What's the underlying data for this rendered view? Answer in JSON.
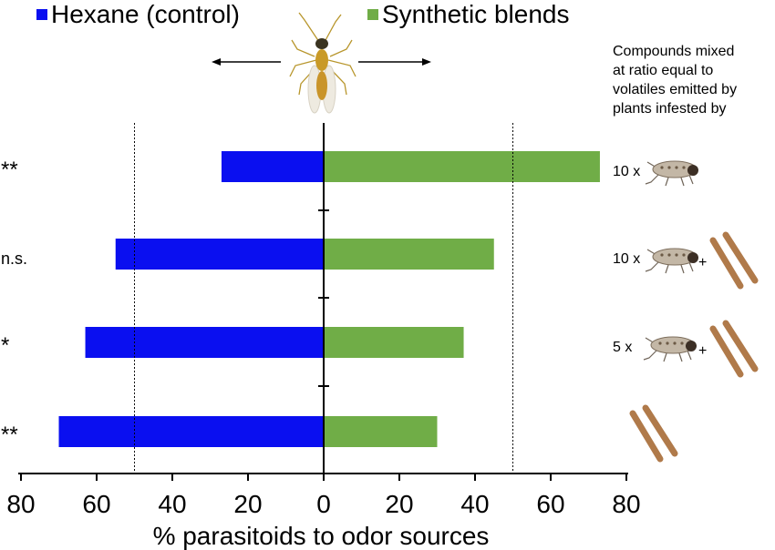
{
  "legend": {
    "control": "Hexane (control)",
    "blend": "Synthetic blends"
  },
  "side_note": {
    "line1": "Compounds mixed",
    "line2": "at  ratio equal to",
    "line3": "volatiles emitted by",
    "line4": "plants infested by"
  },
  "rows": [
    {
      "significance": "**",
      "treatment": "10 x",
      "has_plus": false,
      "icons": [
        "insect-icon"
      ]
    },
    {
      "significance": "n.s.",
      "treatment": "10 x",
      "has_plus": true,
      "icons": [
        "insect-icon",
        "larva-icon"
      ]
    },
    {
      "significance": "*",
      "treatment": "5 x",
      "has_plus": true,
      "icons": [
        "insect-icon",
        "larva-icon"
      ]
    },
    {
      "significance": "**",
      "treatment": "",
      "has_plus": false,
      "icons": [
        "larva-icon"
      ]
    }
  ],
  "colors": {
    "control": "#0a0ff0",
    "blend": "#70ad47"
  },
  "chart_data": {
    "type": "bar",
    "orientation": "horizontal-diverging",
    "title": "",
    "xlabel": "% parasitoids to odor sources",
    "ylabel": "",
    "xlim": [
      -80,
      80
    ],
    "xticks": [
      -80,
      -60,
      -40,
      -20,
      0,
      20,
      40,
      60,
      80
    ],
    "xtick_labels": [
      "80",
      "60",
      "40",
      "20",
      "0",
      "20",
      "40",
      "60",
      "80"
    ],
    "reference_lines": [
      -50,
      50
    ],
    "categories": [
      "10 x insect",
      "10 x insect + larvae",
      "5 x insect + larvae",
      "larvae"
    ],
    "series": [
      {
        "name": "Hexane (control)",
        "values": [
          27,
          55,
          63,
          70
        ]
      },
      {
        "name": "Synthetic blends",
        "values": [
          73,
          45,
          37,
          30
        ]
      }
    ]
  }
}
